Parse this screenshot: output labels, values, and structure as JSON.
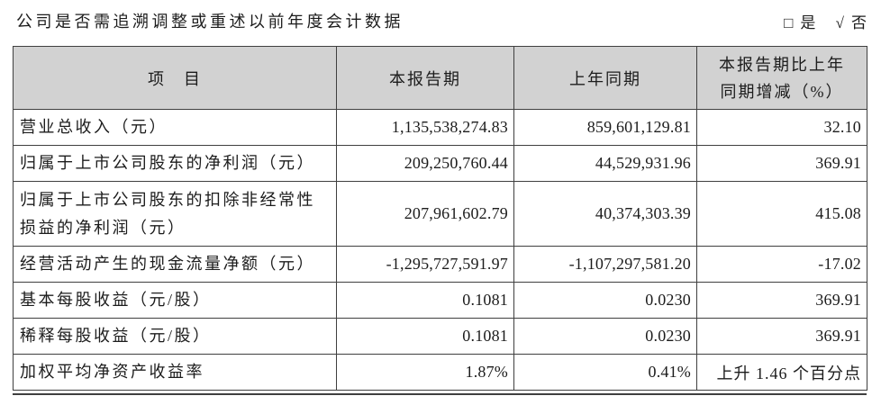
{
  "page": {
    "question": "公司是否需追溯调整或重述以前年度会计数据",
    "yes_option": {
      "box_glyph": "□",
      "label": "是"
    },
    "no_option": {
      "check_glyph": "√",
      "label": "否"
    }
  },
  "table": {
    "headers": {
      "item": "项　目",
      "current_period": "本报告期",
      "prior_period": "上年同期",
      "change_line1": "本报告期比上年",
      "change_line2": "同期增减（%）"
    },
    "rows": [
      {
        "label": "营业总收入（元）",
        "current": "1,135,538,274.83",
        "prior": "859,601,129.81",
        "change": "32.10"
      },
      {
        "label": "归属于上市公司股东的净利润（元）",
        "current": "209,250,760.44",
        "prior": "44,529,931.96",
        "change": "369.91"
      },
      {
        "label": "归属于上市公司股东的扣除非经常性",
        "label2": "损益的净利润（元）",
        "current": "207,961,602.79",
        "prior": "40,374,303.39",
        "change": "415.08"
      },
      {
        "label": "经营活动产生的现金流量净额（元）",
        "current": "-1,295,727,591.97",
        "prior": "-1,107,297,581.20",
        "change": "-17.02"
      },
      {
        "label": "基本每股收益（元/股）",
        "current": "0.1081",
        "prior": "0.0230",
        "change": "369.91"
      },
      {
        "label": "稀释每股收益（元/股）",
        "current": "0.1081",
        "prior": "0.0230",
        "change": "369.91"
      },
      {
        "label": "加权平均净资产收益率",
        "current": "1.87%",
        "prior": "0.41%",
        "change": "上升 1.46 个百分点"
      }
    ]
  }
}
